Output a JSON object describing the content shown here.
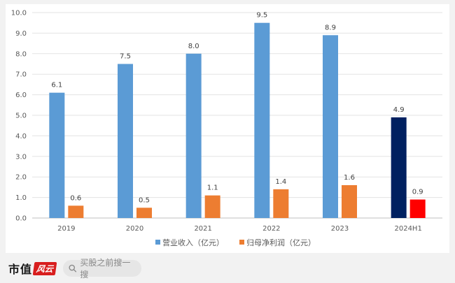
{
  "chart_data": {
    "type": "bar",
    "categories": [
      "2019",
      "2020",
      "2021",
      "2022",
      "2023",
      "2024H1"
    ],
    "series": [
      {
        "name": "营业收入（亿元）",
        "values": [
          6.1,
          7.5,
          8.0,
          9.5,
          8.9,
          4.9
        ],
        "color": "#5b9bd5",
        "highlight_color": "#002060"
      },
      {
        "name": "归母净利润（亿元）",
        "values": [
          0.6,
          0.5,
          1.1,
          1.4,
          1.6,
          0.9
        ],
        "color": "#ed7d31",
        "highlight_color": "#ff0000"
      }
    ],
    "highlight_index": 5,
    "ylim": [
      0,
      10
    ],
    "yticks": [
      "0.0",
      "1.0",
      "2.0",
      "3.0",
      "4.0",
      "5.0",
      "6.0",
      "7.0",
      "8.0",
      "9.0",
      "10.0"
    ],
    "grid": true,
    "legend_position": "bottom"
  },
  "footer": {
    "logo_text": "市值",
    "logo_badge": "风云",
    "search_placeholder": "买股之前搜一搜"
  }
}
